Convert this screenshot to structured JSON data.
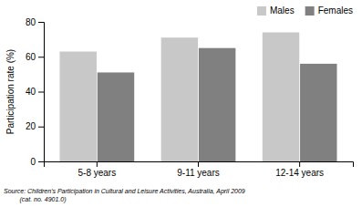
{
  "chart_data": {
    "type": "bar",
    "categories": [
      "5-8 years",
      "9-11 years",
      "12-14 years"
    ],
    "series": [
      {
        "name": "Males",
        "color": "#c8c8c8",
        "values": [
          63,
          71,
          74
        ]
      },
      {
        "name": "Females",
        "color": "#808080",
        "values": [
          51,
          65,
          56
        ]
      }
    ],
    "ylabel": "Participation rate (%)",
    "ylim": [
      0,
      80
    ],
    "yticks": [
      0,
      20,
      40,
      60,
      80
    ],
    "grid": false,
    "legend": "upper right",
    "annotations": [
      "Source: Children's Participation in Cultural and Leisure Activities, Australia, April 2009",
      "         (cat. no. 4901.0)"
    ]
  }
}
